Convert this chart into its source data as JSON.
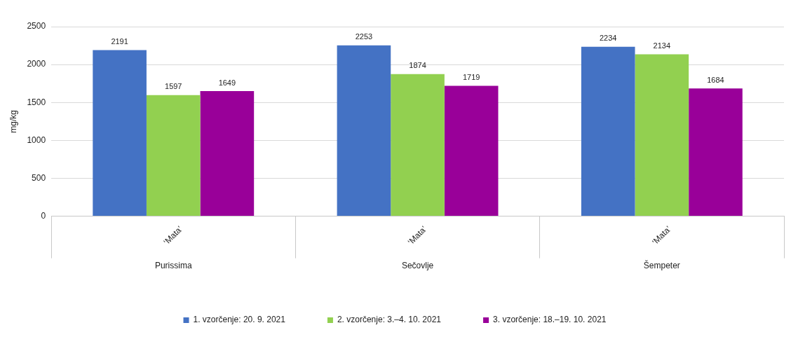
{
  "chart_data": {
    "type": "bar",
    "ylabel": "mg/kg",
    "categories": [
      "Purissima",
      "Sečovlje",
      "Šempeter"
    ],
    "series": [
      {
        "name": "1. vzorčenje: 20. 9. 2021",
        "color": "#4472c4",
        "values": [
          2191,
          2253,
          2234
        ]
      },
      {
        "name": "2. vzorčenje: 3.–4. 10. 2021",
        "color": "#92d050",
        "values": [
          1597,
          1874,
          2134
        ]
      },
      {
        "name": "3. vzorčenje: 18.–19. 10. 2021",
        "color": "#990099",
        "values": [
          1649,
          1719,
          1684
        ]
      }
    ],
    "annotations": [
      "‘Mata’",
      "‘Mata’",
      "‘Mata’"
    ],
    "ylim": [
      0,
      2500
    ],
    "yticks": [
      0,
      500,
      1000,
      1500,
      2000,
      2500
    ],
    "grid": "y",
    "legend": "bottom",
    "data_labels": true
  }
}
